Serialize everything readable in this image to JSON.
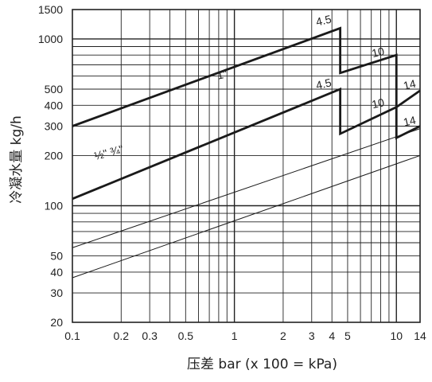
{
  "chart_data": {
    "type": "line",
    "x_scale": "log",
    "y_scale": "log",
    "xlim": [
      0.1,
      14
    ],
    "ylim": [
      20,
      1500
    ],
    "xlabel": "压差 bar (x 100 = kPa)",
    "ylabel": "冷凝水量 kg/h",
    "grid": true,
    "x_ticks": [
      {
        "value": 0.1,
        "label": "0.1"
      },
      {
        "value": 0.2,
        "label": "0.2"
      },
      {
        "value": 0.3,
        "label": "0.3"
      },
      {
        "value": 0.5,
        "label": "0.5"
      },
      {
        "value": 1,
        "label": "1"
      },
      {
        "value": 2,
        "label": "2"
      },
      {
        "value": 3,
        "label": "3"
      },
      {
        "value": 4,
        "label": "4"
      },
      {
        "value": 5,
        "label": "5"
      },
      {
        "value": 10,
        "label": "10"
      },
      {
        "value": 14,
        "label": "14"
      }
    ],
    "y_ticks": [
      {
        "value": 20,
        "label": "20"
      },
      {
        "value": 30,
        "label": "30"
      },
      {
        "value": 40,
        "label": "40"
      },
      {
        "value": 50,
        "label": "50"
      },
      {
        "value": 100,
        "label": "100"
      },
      {
        "value": 200,
        "label": "200"
      },
      {
        "value": 300,
        "label": "300"
      },
      {
        "value": 400,
        "label": "400"
      },
      {
        "value": 500,
        "label": "500"
      },
      {
        "value": 1000,
        "label": "1000"
      },
      {
        "value": 1500,
        "label": "1500"
      }
    ],
    "series": [
      {
        "name": "1\"",
        "weight": "bold",
        "points": [
          [
            0.1,
            300
          ],
          [
            4.5,
            1160
          ],
          [
            4.5,
            625
          ],
          [
            10,
            800
          ],
          [
            10,
            390
          ],
          [
            14,
            490
          ]
        ]
      },
      {
        "name": "½\" ¾\"",
        "weight": "bold",
        "points": [
          [
            0.1,
            110
          ],
          [
            4.5,
            500
          ],
          [
            4.5,
            270
          ],
          [
            10,
            390
          ],
          [
            10,
            255
          ],
          [
            14,
            300
          ]
        ]
      },
      {
        "weight": "thin",
        "points": [
          [
            0.1,
            56
          ],
          [
            14,
            290
          ]
        ]
      },
      {
        "weight": "thin",
        "points": [
          [
            0.1,
            37
          ],
          [
            14,
            200
          ]
        ]
      }
    ],
    "annotations": [
      {
        "text": "1\"",
        "x": 0.85,
        "y": 580,
        "rotate": -13
      },
      {
        "text": "½\" ¾\"",
        "x": 0.17,
        "y": 198,
        "rotate": -15
      },
      {
        "text": "4.5",
        "x": 3.6,
        "y": 1225,
        "rotate": -13
      },
      {
        "text": "10",
        "x": 7.8,
        "y": 790,
        "rotate": -13
      },
      {
        "text": "4.5",
        "x": 3.6,
        "y": 510,
        "rotate": -13
      },
      {
        "text": "10",
        "x": 7.8,
        "y": 390,
        "rotate": -13
      },
      {
        "text": "14",
        "x": 12.2,
        "y": 505,
        "rotate": -13
      },
      {
        "text": "14",
        "x": 12.2,
        "y": 305,
        "rotate": -13
      }
    ]
  }
}
